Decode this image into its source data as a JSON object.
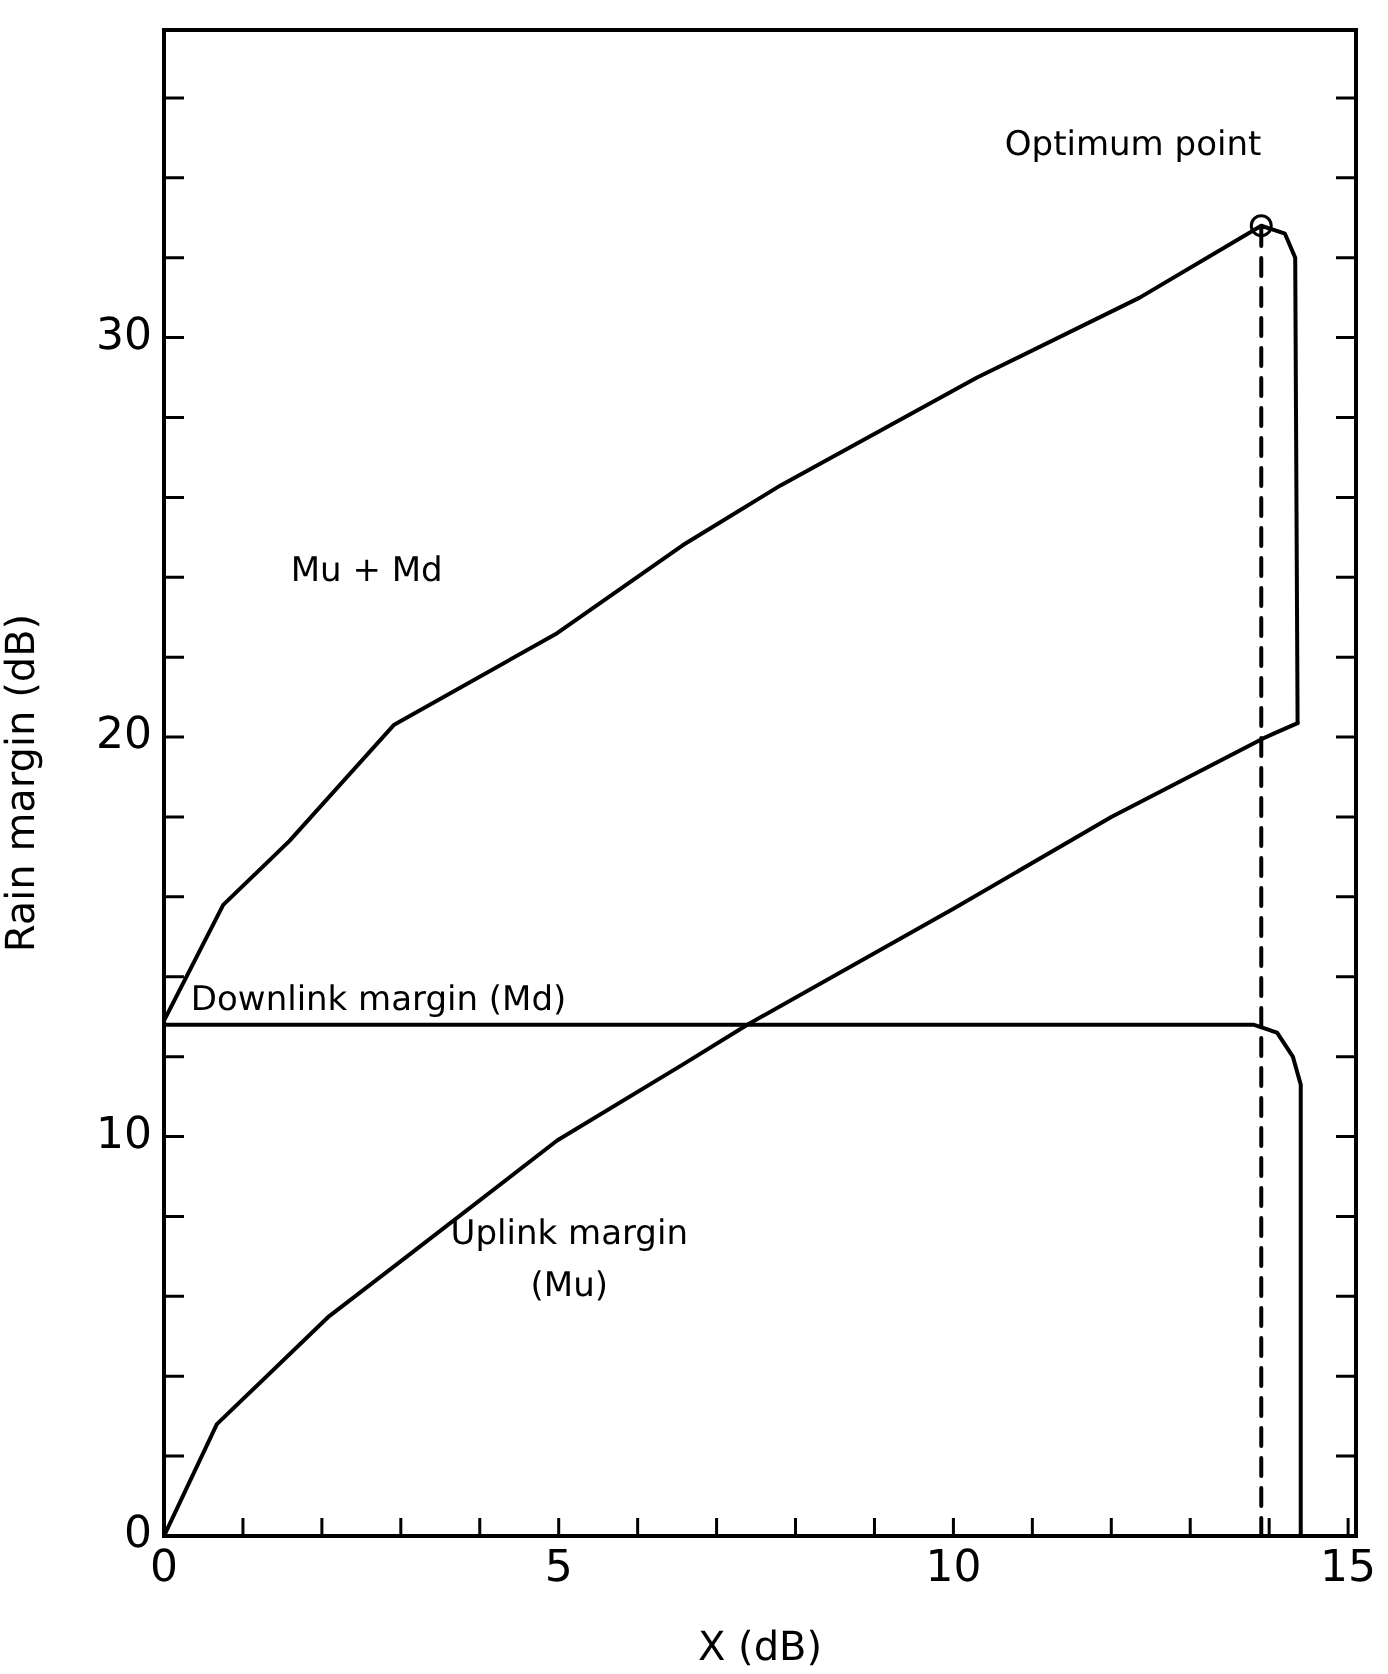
{
  "chart_data": {
    "type": "line",
    "xlabel": "X (dB)",
    "ylabel": "Rain margin (dB)",
    "xlim": [
      0,
      15.1
    ],
    "xticks": [
      0,
      {
        "value": 1,
        "label": null
      },
      {
        "value": 2,
        "label": null
      },
      {
        "value": 3,
        "label": null
      },
      {
        "value": 4,
        "label": null
      },
      5,
      {
        "value": 6,
        "label": null
      },
      {
        "value": 7,
        "label": null
      },
      {
        "value": 8,
        "label": null
      },
      {
        "value": 9,
        "label": null
      },
      10,
      {
        "value": 11,
        "label": null
      },
      {
        "value": 12,
        "label": null
      },
      {
        "value": 13,
        "label": null
      },
      {
        "value": 14,
        "label": null
      },
      15
    ],
    "ylim": [
      0,
      37.7
    ],
    "yticks": [
      0,
      {
        "value": 2,
        "label": null
      },
      {
        "value": 4,
        "label": null
      },
      {
        "value": 6,
        "label": null
      },
      {
        "value": 8,
        "label": null
      },
      10,
      {
        "value": 12,
        "label": null
      },
      {
        "value": 14,
        "label": null
      },
      {
        "value": 16,
        "label": null
      },
      {
        "value": 18,
        "label": null
      },
      20,
      {
        "value": 22,
        "label": null
      },
      {
        "value": 24,
        "label": null
      },
      {
        "value": 26,
        "label": null
      },
      {
        "value": 28,
        "label": null
      },
      30,
      {
        "value": 32,
        "label": null
      },
      {
        "value": 34,
        "label": null
      },
      {
        "value": 36,
        "label": null
      }
    ],
    "grid": false,
    "legend": false,
    "series": [
      {
        "name": "Mu + Md",
        "color": "#000000",
        "x": [
          0,
          0.75,
          1.59,
          2.91,
          4.98,
          6.57,
          7.81,
          10.3,
          12.36,
          13.9,
          14.2,
          14.33,
          14.36
        ],
        "values": [
          12.9,
          15.8,
          17.4,
          20.3,
          22.6,
          24.8,
          26.3,
          29.0,
          31.0,
          32.8,
          32.6,
          32.0,
          20.35
        ]
      },
      {
        "name": "Downlink margin (Md)",
        "color": "#000000",
        "x": [
          0,
          13.8,
          14.1,
          14.3,
          14.4,
          14.4
        ],
        "values": [
          12.8,
          12.8,
          12.6,
          12.0,
          11.3,
          0
        ]
      },
      {
        "name": "Uplink margin (Mu)",
        "color": "#000000",
        "x": [
          0,
          0.67,
          2.09,
          3.08,
          4.98,
          6.57,
          7.39,
          10.0,
          12.0,
          13.96,
          14.36
        ],
        "values": [
          0,
          2.8,
          5.5,
          7.0,
          9.9,
          11.8,
          12.8,
          15.7,
          18.0,
          20.0,
          20.35
        ]
      },
      {
        "color": "#000000",
        "line_style": "dashed",
        "x": [
          13.9,
          13.9
        ],
        "values": [
          0,
          32.8
        ]
      },
      {
        "type": "scatter",
        "color": "#000000",
        "marker": "circle",
        "x": [
          13.9
        ],
        "values": [
          32.8
        ]
      }
    ],
    "annotations": [
      {
        "text": "Optimum point",
        "x": 13.9,
        "y": 32.8
      }
    ]
  }
}
